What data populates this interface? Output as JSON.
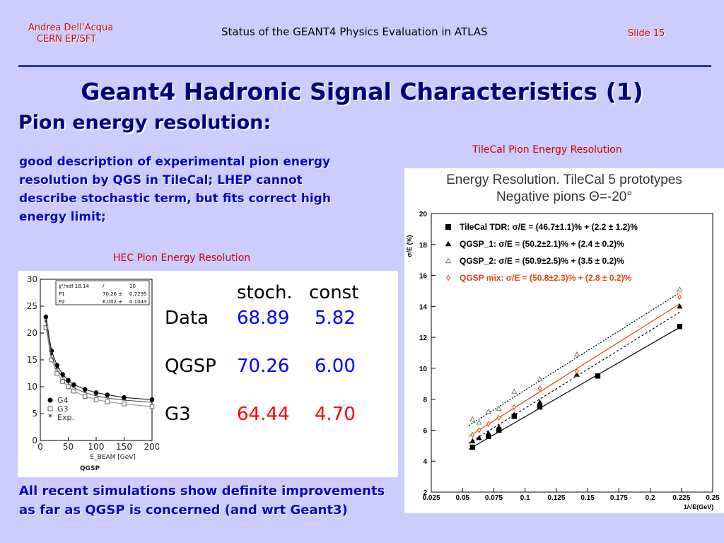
{
  "header": {
    "author": "Andrea Dell’Acqua",
    "affiliation": "CERN EP/SFT",
    "doc_title": "Status of the GEANT4 Physics Evaluation in ATLAS",
    "slide": "Slide 15"
  },
  "title": "Geant4 Hadronic Signal Characteristics (1)",
  "subtitle": "Pion energy resolution:",
  "body_lines": [
    "good description of experimental pion energy",
    "resolution by QGS in TileCal; LHEP cannot",
    "describe stochastic term, but fits correct high",
    "energy limit;"
  ],
  "hec_caption": "HEC Pion Energy Resolution",
  "tile_caption": "TileCal Pion Energy Resolution",
  "conclusion_lines": [
    "All recent simulations show definite improvements",
    "as far as QGSP is concerned (and wrt Geant3)"
  ],
  "table": {
    "col_headers": [
      "stoch.",
      "const"
    ],
    "rows": [
      {
        "label": "Data",
        "stoch": "68.89",
        "const": "5.82",
        "color": "#0000ff"
      },
      {
        "label": "QGSP",
        "stoch": "70.26",
        "const": "6.00",
        "color": "#0000ff"
      },
      {
        "label": "G3",
        "stoch": "64.44",
        "const": "4.70",
        "color": "#ff0000"
      }
    ]
  },
  "chart_data": [
    {
      "type": "scatter",
      "title": "",
      "xlabel": "E_BEAM [GeV]",
      "ylabel": "",
      "xlim": [
        0,
        200
      ],
      "ylim": [
        0,
        30
      ],
      "x_ticks": [
        "0",
        "50",
        "100",
        "150",
        "200"
      ],
      "y_ticks": [
        "0",
        "5",
        "10",
        "15",
        "20",
        "25",
        "30"
      ],
      "fit_box_lines": [
        [
          "χ²/ndf 18.14",
          "/",
          "10"
        ],
        [
          "P1",
          "70.26 ±",
          "0.7295"
        ],
        [
          "P2",
          "6.002 ±",
          "0.1043"
        ]
      ],
      "tag": "QGSP",
      "series": [
        {
          "name": "G4",
          "x": [
            10,
            20,
            30,
            40,
            50,
            60,
            80,
            100,
            120,
            150,
            200
          ],
          "y": [
            23.0,
            16.7,
            14.0,
            12.3,
            11.2,
            10.4,
            9.5,
            8.9,
            8.5,
            8.0,
            7.6
          ]
        },
        {
          "name": "G3",
          "x": [
            10,
            20,
            30,
            40,
            50,
            60,
            80,
            100,
            120,
            150,
            200
          ],
          "y": [
            21.0,
            15.0,
            12.5,
            11.0,
            10.0,
            9.2,
            8.2,
            7.6,
            7.2,
            6.8,
            6.3
          ]
        },
        {
          "name": "Exp.",
          "x": [
            10,
            20,
            30,
            40,
            50,
            60,
            80,
            100,
            120,
            150,
            200
          ],
          "y": [
            22.0,
            15.8,
            13.2,
            11.7,
            10.6,
            9.8,
            8.9,
            8.3,
            7.9,
            7.5,
            7.1
          ]
        }
      ]
    },
    {
      "type": "scatter",
      "title": "Energy Resolution. TileCal 5 prototypes",
      "subtitle": "Negative pions Θ=-20°",
      "xlabel": "1/√E(GeV)",
      "ylabel": "σ/E (%)",
      "xlim": [
        0.025,
        0.25
      ],
      "ylim": [
        2,
        20
      ],
      "x_ticks": [
        "0.025",
        "0.05",
        "0.075",
        "0.1",
        "0.125",
        "0.15",
        "0.175",
        "0.2",
        "0.225",
        "0.25"
      ],
      "y_ticks": [
        "2",
        "4",
        "6",
        "8",
        "10",
        "12",
        "14",
        "16",
        "18",
        "20"
      ],
      "legend": [
        {
          "label": "TileCal TDR: σ/E = (46.7±1.1)% + (2.2 ± 1.2)%",
          "color": "#000000"
        },
        {
          "label": "QGSP_1:   σ/E = (50.2±2.1)% + (2.4 ± 0.2)%",
          "color": "#000000"
        },
        {
          "label": "QGSP_2:  σ/E = (50.9±2.5)% + (3.5 ± 0.2)%",
          "color": "#000000"
        },
        {
          "label": "QGSP mix:   σ/E = (50.8±2.3)% + (2.8 ± 0.2)%",
          "color": "#e2421c"
        }
      ],
      "series": [
        {
          "name": "TileCal TDR",
          "x": [
            0.058,
            0.0707,
            0.0791,
            0.0913,
            0.1118,
            0.1581,
            0.2236
          ],
          "y": [
            4.9,
            5.6,
            6.0,
            6.9,
            7.5,
            9.5,
            12.7
          ]
        },
        {
          "name": "QGSP_1",
          "x": [
            0.058,
            0.0632,
            0.0707,
            0.0791,
            0.0913,
            0.1118,
            0.1414,
            0.2236
          ],
          "y": [
            5.3,
            5.5,
            5.8,
            6.2,
            7.0,
            7.8,
            9.6,
            14.0
          ]
        },
        {
          "name": "QGSP_2",
          "x": [
            0.058,
            0.0632,
            0.0707,
            0.0791,
            0.0913,
            0.1118,
            0.1414,
            0.2236
          ],
          "y": [
            6.7,
            6.5,
            7.2,
            7.4,
            8.5,
            9.3,
            10.9,
            15.1
          ]
        },
        {
          "name": "QGSP mix",
          "x": [
            0.058,
            0.0632,
            0.0707,
            0.0791,
            0.0913,
            0.1118,
            0.1414,
            0.2236
          ],
          "y": [
            5.7,
            6.0,
            6.4,
            6.8,
            7.5,
            8.7,
            9.8,
            14.6
          ]
        }
      ]
    }
  ]
}
